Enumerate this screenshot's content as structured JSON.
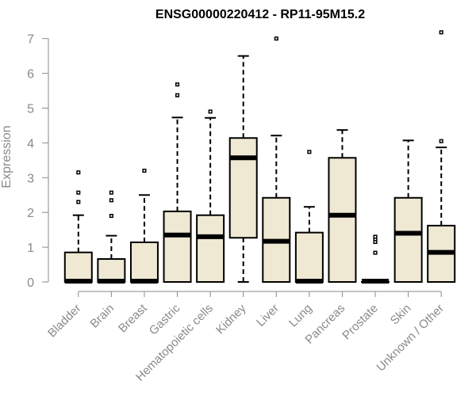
{
  "chart_data": {
    "type": "boxplot",
    "title": "ENSG00000220412 - RP11-95M15.2",
    "ylabel": "Expression",
    "xlabel": "",
    "ylim": [
      0,
      7.3
    ],
    "yticks": [
      0,
      1,
      2,
      3,
      4,
      5,
      6,
      7
    ],
    "grid": false,
    "colors": {
      "box_fill": "#efe8d2",
      "stroke": "#000000",
      "axis": "#8a8a8a"
    },
    "categories": [
      "Bladder",
      "Brain",
      "Breast",
      "Gastric",
      "Hematopoietic cells",
      "Kidney",
      "Liver",
      "Lung",
      "Pancreas",
      "Prostate",
      "Skin",
      "Unknown / Other"
    ],
    "boxes": [
      {
        "category": "Bladder",
        "whisker_low": 0,
        "q1": 0,
        "median": 0,
        "q3": 0.85,
        "whisker_high": 1.92,
        "outliers": [
          2.3,
          2.57,
          3.15
        ]
      },
      {
        "category": "Brain",
        "whisker_low": 0,
        "q1": 0,
        "median": 0,
        "q3": 0.66,
        "whisker_high": 1.33,
        "outliers": [
          1.9,
          2.35,
          2.57
        ]
      },
      {
        "category": "Breast",
        "whisker_low": 0,
        "q1": 0,
        "median": 0,
        "q3": 1.14,
        "whisker_high": 2.5,
        "outliers": [
          3.2
        ]
      },
      {
        "category": "Gastric",
        "whisker_low": 0,
        "q1": 0,
        "median": 1.35,
        "q3": 2.03,
        "whisker_high": 4.73,
        "outliers": [
          5.37,
          5.68
        ]
      },
      {
        "category": "Hematopoietic cells",
        "whisker_low": 0,
        "q1": 0,
        "median": 1.3,
        "q3": 1.92,
        "whisker_high": 4.72,
        "outliers": [
          4.9
        ]
      },
      {
        "category": "Kidney",
        "whisker_low": 0,
        "q1": 1.27,
        "median": 3.57,
        "q3": 4.14,
        "whisker_high": 6.5,
        "outliers": []
      },
      {
        "category": "Liver",
        "whisker_low": 0,
        "q1": 0,
        "median": 1.17,
        "q3": 2.42,
        "whisker_high": 4.21,
        "outliers": [
          7.0
        ]
      },
      {
        "category": "Lung",
        "whisker_low": 0,
        "q1": 0,
        "median": 0,
        "q3": 1.42,
        "whisker_high": 2.16,
        "outliers": [
          3.74
        ]
      },
      {
        "category": "Pancreas",
        "whisker_low": 0,
        "q1": 0,
        "median": 1.92,
        "q3": 3.57,
        "whisker_high": 4.37,
        "outliers": []
      },
      {
        "category": "Prostate",
        "whisker_low": 0,
        "q1": 0,
        "median": 0,
        "q3": 0,
        "whisker_high": 0,
        "outliers": [
          0.84,
          1.15,
          1.23,
          1.3
        ]
      },
      {
        "category": "Skin",
        "whisker_low": 0,
        "q1": 0,
        "median": 1.4,
        "q3": 2.42,
        "whisker_high": 4.07,
        "outliers": []
      },
      {
        "category": "Unknown / Other",
        "whisker_low": 0,
        "q1": 0,
        "median": 0.85,
        "q3": 1.62,
        "whisker_high": 3.87,
        "outliers": [
          4.05,
          7.18
        ]
      }
    ]
  }
}
